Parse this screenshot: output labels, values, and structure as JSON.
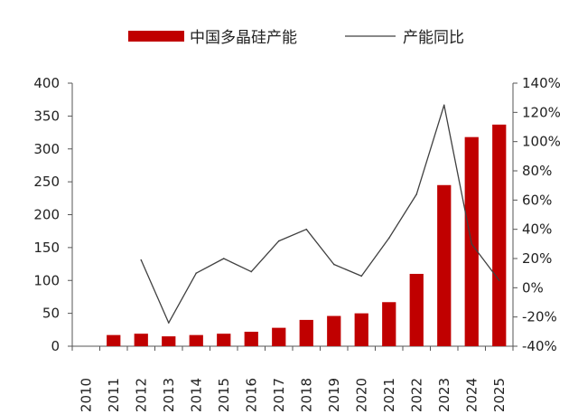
{
  "chart_data": {
    "type": "bar+line",
    "categories": [
      "2010",
      "2011",
      "2012",
      "2013",
      "2014",
      "2015",
      "2016",
      "2017",
      "2018",
      "2019",
      "2020",
      "2021",
      "2022",
      "2023",
      "2024",
      "2025"
    ],
    "series": [
      {
        "name": "中国多晶硅产能",
        "type": "bar",
        "axis": "left",
        "color": "#c00000",
        "values": [
          0,
          17,
          19,
          15,
          17,
          19,
          22,
          28,
          40,
          46,
          50,
          67,
          110,
          245,
          318,
          337
        ]
      },
      {
        "name": "产能同比",
        "type": "line",
        "axis": "right",
        "color": "#404040",
        "values": [
          null,
          null,
          19,
          -24,
          10,
          20,
          11,
          32,
          40,
          16,
          8,
          34,
          64,
          125,
          30,
          5
        ]
      }
    ],
    "left_axis": {
      "ylim": [
        0,
        400
      ],
      "ticks": [
        "0",
        "50",
        "100",
        "150",
        "200",
        "250",
        "300",
        "350",
        "400"
      ]
    },
    "right_axis": {
      "ylim": [
        -40,
        140
      ],
      "ticks": [
        "-40%",
        "-20%",
        "0%",
        "20%",
        "40%",
        "60%",
        "80%",
        "100%",
        "120%",
        "140%"
      ]
    },
    "grid": false,
    "legend_position": "top"
  }
}
